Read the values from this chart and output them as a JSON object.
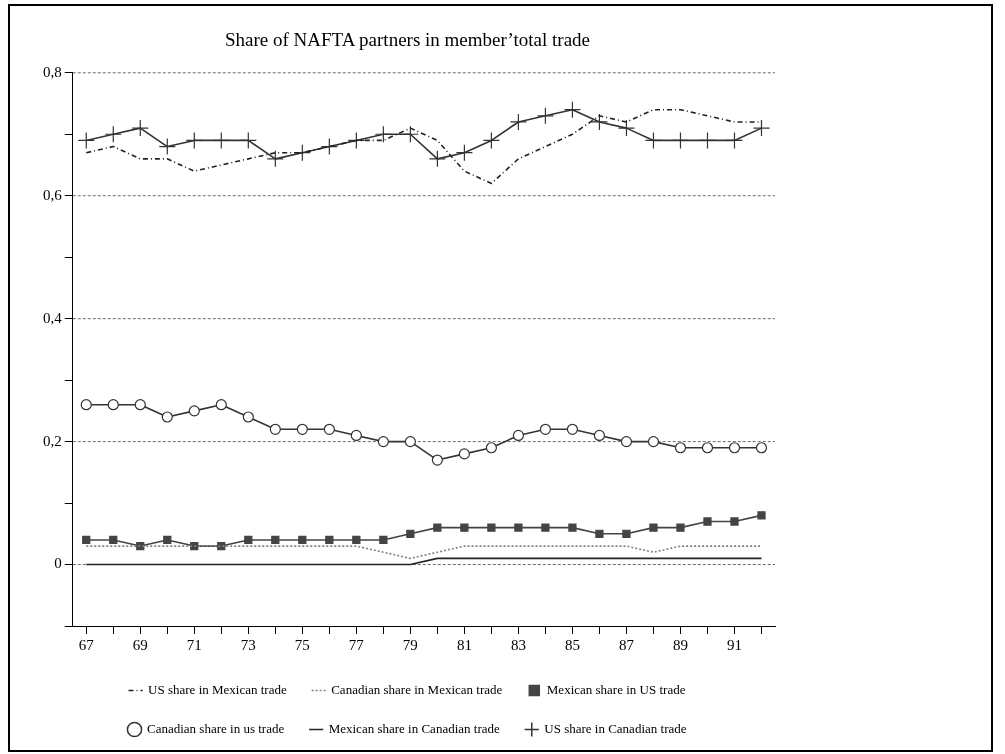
{
  "chart_data": {
    "type": "line",
    "title": "Share of NAFTA partners in member’total trade",
    "categories": [
      "67",
      null,
      "69",
      null,
      "71",
      null,
      "73",
      null,
      "75",
      null,
      "77",
      null,
      "79",
      null,
      "81",
      null,
      "83",
      null,
      "85",
      null,
      "87",
      null,
      "89",
      null,
      "91",
      null
    ],
    "ylim": [
      -0.1,
      0.8
    ],
    "yticks": [
      {
        "value": -0.1,
        "label": null
      },
      {
        "value": 0,
        "label": "0"
      },
      {
        "value": 0.1,
        "label": null
      },
      {
        "value": 0.2,
        "label": "0,2"
      },
      {
        "value": 0.3,
        "label": null
      },
      {
        "value": 0.4,
        "label": "0,4"
      },
      {
        "value": 0.5,
        "label": null
      },
      {
        "value": 0.6,
        "label": "0,6"
      },
      {
        "value": 0.7,
        "label": null
      },
      {
        "value": 0.8,
        "label": "0,8"
      }
    ],
    "grid": "y",
    "legend": "bottom",
    "series": [
      {
        "name": "US share in Mexican trade",
        "color": "#222222",
        "line_style": "dashed",
        "marker": "none",
        "values": [
          0.67,
          0.68,
          0.66,
          0.66,
          0.64,
          0.65,
          0.66,
          0.67,
          0.67,
          0.68,
          0.69,
          0.69,
          0.71,
          0.69,
          0.64,
          0.62,
          0.66,
          0.68,
          0.7,
          0.73,
          0.72,
          0.74,
          0.74,
          0.73,
          0.72,
          0.72
        ]
      },
      {
        "name": "Canadian share in Mexican trade",
        "color": "#808080",
        "line_style": "dotted",
        "marker": "none",
        "values": [
          0.03,
          0.03,
          0.03,
          0.03,
          0.03,
          0.03,
          0.03,
          0.03,
          0.03,
          0.03,
          0.03,
          0.02,
          0.01,
          0.02,
          0.03,
          0.03,
          0.03,
          0.03,
          0.03,
          0.03,
          0.03,
          0.02,
          0.03,
          0.03,
          0.03,
          0.03
        ]
      },
      {
        "name": "Mexican share in US trade",
        "color": "#444444",
        "line_style": "solid",
        "marker": "square",
        "values": [
          0.04,
          0.04,
          0.03,
          0.04,
          0.03,
          0.03,
          0.04,
          0.04,
          0.04,
          0.04,
          0.04,
          0.04,
          0.05,
          0.06,
          0.06,
          0.06,
          0.06,
          0.06,
          0.06,
          0.05,
          0.05,
          0.06,
          0.06,
          0.07,
          0.07,
          0.08
        ]
      },
      {
        "name": "Canadian share in us trade",
        "color": "#333333",
        "line_style": "solid",
        "marker": "circle",
        "values": [
          0.26,
          0.26,
          0.26,
          0.24,
          0.25,
          0.26,
          0.24,
          0.22,
          0.22,
          0.22,
          0.21,
          0.2,
          0.2,
          0.17,
          0.18,
          0.19,
          0.21,
          0.22,
          0.22,
          0.21,
          0.2,
          0.2,
          0.19,
          0.19,
          0.19,
          0.19
        ]
      },
      {
        "name": "Mexican share in Canadian trade",
        "color": "#222222",
        "line_style": "solid",
        "marker": "none",
        "values": [
          0,
          0,
          0,
          0,
          0,
          0,
          0,
          0,
          0,
          0,
          0,
          0,
          0,
          0.01,
          0.01,
          0.01,
          0.01,
          0.01,
          0.01,
          0.01,
          0.01,
          0.01,
          0.01,
          0.01,
          0.01,
          0.01
        ]
      },
      {
        "name": "US share in Canadian trade",
        "color": "#333333",
        "line_style": "solid",
        "marker": "cross",
        "values": [
          0.69,
          0.7,
          0.71,
          0.68,
          0.69,
          0.69,
          0.69,
          0.66,
          0.67,
          0.68,
          0.69,
          0.7,
          0.7,
          0.66,
          0.67,
          0.69,
          0.72,
          0.73,
          0.74,
          0.72,
          0.71,
          0.69,
          0.69,
          0.69,
          0.69,
          0.71
        ]
      }
    ]
  }
}
